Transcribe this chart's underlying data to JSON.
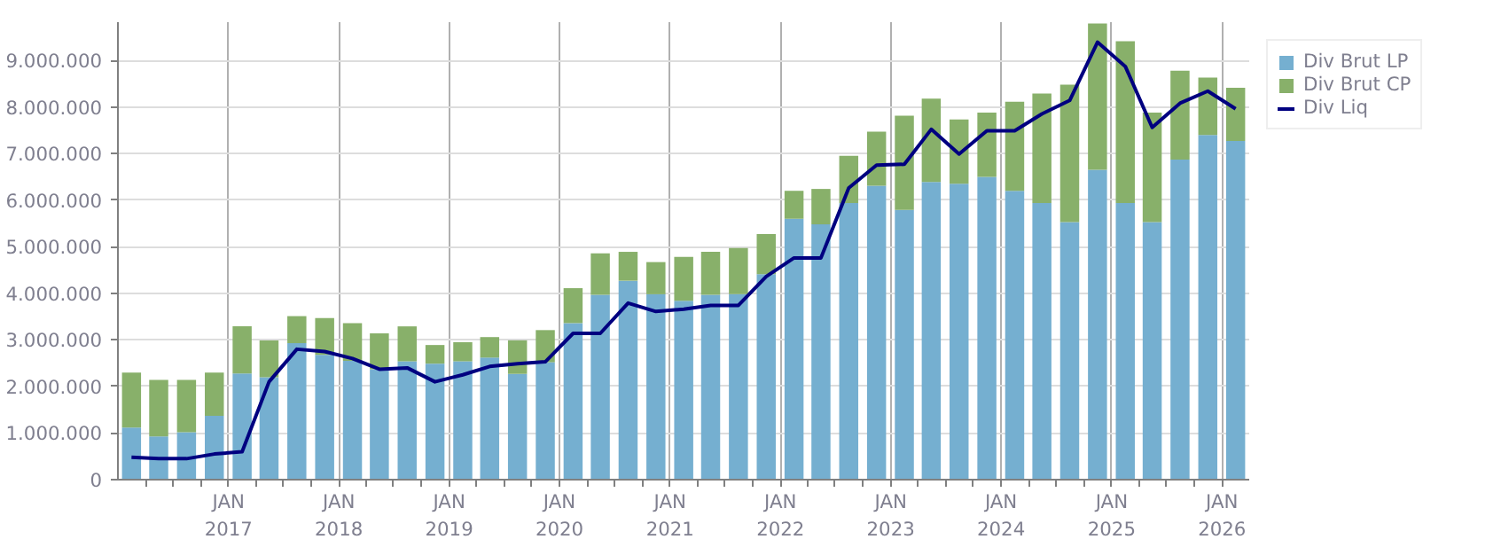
{
  "chart_data": {
    "type": "bar",
    "stacked": true,
    "x": [
      "2016-02-15",
      "2016-05-15",
      "2016-08-15",
      "2016-11-15",
      "2017-02-15",
      "2017-05-15",
      "2017-08-15",
      "2017-11-15",
      "2018-02-15",
      "2018-05-15",
      "2018-08-15",
      "2018-11-15",
      "2019-02-15",
      "2019-05-15",
      "2019-08-15",
      "2019-11-15",
      "2020-02-15",
      "2020-05-15",
      "2020-08-15",
      "2020-11-15",
      "2021-02-15",
      "2021-05-15",
      "2021-08-15",
      "2021-11-15",
      "2022-02-15",
      "2022-05-15",
      "2022-08-15",
      "2022-11-15",
      "2023-02-15",
      "2023-05-15",
      "2023-08-15",
      "2023-11-15",
      "2024-02-15",
      "2024-05-15",
      "2024-08-15",
      "2024-11-15",
      "2025-02-15",
      "2025-05-15",
      "2025-08-15",
      "2025-11-15",
      "2026-02-15"
    ],
    "series": [
      {
        "name": "Div Brut LP",
        "color": "#75afd0",
        "values": [
          1120000,
          930000,
          1020000,
          1370000,
          2280000,
          2200000,
          2930000,
          2680000,
          2550000,
          2370000,
          2540000,
          2490000,
          2540000,
          2620000,
          2270000,
          2520000,
          3360000,
          3970000,
          4270000,
          3980000,
          3840000,
          3970000,
          3980000,
          4410000,
          5600000,
          5480000,
          5940000,
          6310000,
          5790000,
          6390000,
          6350000,
          6500000,
          6200000,
          5940000,
          5530000,
          6650000,
          5940000,
          5530000,
          6870000,
          7400000,
          7270000
        ]
      },
      {
        "name": "Div Brut CP",
        "color": "#88b06a",
        "values": [
          1180000,
          1210000,
          1120000,
          930000,
          1010000,
          790000,
          580000,
          790000,
          810000,
          770000,
          750000,
          400000,
          410000,
          440000,
          720000,
          690000,
          750000,
          890000,
          620000,
          690000,
          940000,
          920000,
          990000,
          860000,
          600000,
          760000,
          1010000,
          1160000,
          2020000,
          1790000,
          1380000,
          1380000,
          1910000,
          2350000,
          2950000,
          3140000,
          3470000,
          2350000,
          1910000,
          1230000,
          1140000
        ]
      },
      {
        "name": "Div Liq",
        "type": "line",
        "color": "#000080",
        "values": [
          480000,
          450000,
          450000,
          550000,
          600000,
          2100000,
          2800000,
          2750000,
          2600000,
          2370000,
          2400000,
          2100000,
          2250000,
          2430000,
          2490000,
          2530000,
          3140000,
          3140000,
          3790000,
          3610000,
          3660000,
          3740000,
          3740000,
          4360000,
          4760000,
          4760000,
          6260000,
          6750000,
          6770000,
          7520000,
          6990000,
          7490000,
          7490000,
          7850000,
          8140000,
          9390000,
          8870000,
          7560000,
          8080000,
          8340000,
          7960000
        ]
      }
    ],
    "xlim": [
      "2016-01-01",
      "2026-04-01"
    ],
    "xticks": [
      {
        "value": "2016-04-01",
        "label": null
      },
      {
        "value": "2016-07-01",
        "label": null
      },
      {
        "value": "2016-10-01",
        "label": null
      },
      {
        "value": "2017-01-01",
        "label": "JAN\n2017"
      },
      {
        "value": "2017-04-01",
        "label": null
      },
      {
        "value": "2017-07-01",
        "label": null
      },
      {
        "value": "2017-10-01",
        "label": null
      },
      {
        "value": "2018-01-01",
        "label": "JAN\n2018"
      },
      {
        "value": "2018-04-01",
        "label": null
      },
      {
        "value": "2018-07-01",
        "label": null
      },
      {
        "value": "2018-10-01",
        "label": null
      },
      {
        "value": "2019-01-01",
        "label": "JAN\n2019"
      },
      {
        "value": "2019-04-01",
        "label": null
      },
      {
        "value": "2019-07-01",
        "label": null
      },
      {
        "value": "2019-10-01",
        "label": null
      },
      {
        "value": "2020-01-01",
        "label": "JAN\n2020"
      },
      {
        "value": "2020-04-01",
        "label": null
      },
      {
        "value": "2020-07-01",
        "label": null
      },
      {
        "value": "2020-10-01",
        "label": null
      },
      {
        "value": "2021-01-01",
        "label": "JAN\n2021"
      },
      {
        "value": "2021-04-01",
        "label": null
      },
      {
        "value": "2021-07-01",
        "label": null
      },
      {
        "value": "2021-10-01",
        "label": null
      },
      {
        "value": "2022-01-01",
        "label": "JAN\n2022"
      },
      {
        "value": "2022-04-01",
        "label": null
      },
      {
        "value": "2022-07-01",
        "label": null
      },
      {
        "value": "2022-10-01",
        "label": null
      },
      {
        "value": "2023-01-01",
        "label": "JAN\n2023"
      },
      {
        "value": "2023-04-01",
        "label": null
      },
      {
        "value": "2023-07-01",
        "label": null
      },
      {
        "value": "2023-10-01",
        "label": null
      },
      {
        "value": "2024-01-01",
        "label": "JAN\n2024"
      },
      {
        "value": "2024-04-01",
        "label": null
      },
      {
        "value": "2024-07-01",
        "label": null
      },
      {
        "value": "2024-10-01",
        "label": null
      },
      {
        "value": "2025-01-01",
        "label": "JAN\n2025"
      },
      {
        "value": "2025-04-01",
        "label": null
      },
      {
        "value": "2025-07-01",
        "label": null
      },
      {
        "value": "2025-10-01",
        "label": null
      },
      {
        "value": "2026-01-01",
        "label": "JAN\n2026"
      }
    ],
    "ylim": [
      0,
      9820000
    ],
    "yticks": [
      {
        "value": 0,
        "label": "0"
      },
      {
        "value": 1000000,
        "label": "1.000.000"
      },
      {
        "value": 2000000,
        "label": "2.000.000"
      },
      {
        "value": 3000000,
        "label": "3.000.000"
      },
      {
        "value": 4000000,
        "label": "4.000.000"
      },
      {
        "value": 5000000,
        "label": "5.000.000"
      },
      {
        "value": 6000000,
        "label": "6.000.000"
      },
      {
        "value": 7000000,
        "label": "7.000.000"
      },
      {
        "value": 8000000,
        "label": "8.000.000"
      },
      {
        "value": 9000000,
        "label": "9.000.000"
      }
    ],
    "grid": true,
    "legend": "top right",
    "marker": "none",
    "line_style": "solid"
  }
}
